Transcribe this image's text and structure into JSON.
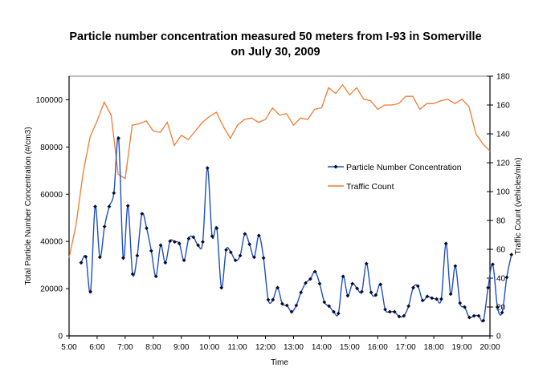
{
  "chart_data": {
    "type": "line",
    "title": [
      "Particle number concentration measured 50 meters from I-93 in Somerville",
      "on July 30, 2009"
    ],
    "xlabel": "Time",
    "ylabel": "Total Particle Number Concentration (#/cm3)",
    "y2label": "Traffic Count (vehicles/min)",
    "xlim": [
      5,
      20
    ],
    "ylim": [
      0,
      110000
    ],
    "y2lim": [
      0,
      180
    ],
    "x_ticks": [
      "5:00",
      "6:00",
      "7:00",
      "8:00",
      "9:00",
      "10:00",
      "11:00",
      "12:00",
      "13:00",
      "14:00",
      "15:00",
      "16:00",
      "17:00",
      "18:00",
      "19:00",
      "20:00"
    ],
    "y_ticks": [
      "0",
      "20000",
      "40000",
      "60000",
      "80000",
      "100000"
    ],
    "y2_ticks": [
      "0",
      "20",
      "40",
      "60",
      "80",
      "100",
      "120",
      "140",
      "160",
      "180"
    ],
    "legend_position": "right-middle",
    "colors": {
      "particle": "#1f4fbf",
      "marker": "#0a0a2a",
      "traffic": "#f07a30",
      "axis": "#000000",
      "frame": "#808080"
    },
    "series": [
      {
        "name": "Particle Number Concentration",
        "axis": "left",
        "marker": "diamond",
        "start_hour": 5.43,
        "step_hours": 0.1667,
        "values": [
          31000,
          33500,
          18700,
          54800,
          33300,
          46300,
          54800,
          60500,
          83700,
          33000,
          55100,
          26200,
          34000,
          51700,
          45600,
          36000,
          25200,
          38400,
          31000,
          40100,
          39800,
          39100,
          32000,
          41200,
          41800,
          38400,
          39800,
          71100,
          42200,
          45600,
          20400,
          36400,
          35400,
          32000,
          34000,
          43200,
          38800,
          33300,
          42500,
          33000,
          15300,
          15300,
          20400,
          13600,
          12900,
          10200,
          12900,
          18400,
          22400,
          24100,
          27200,
          22100,
          14300,
          12600,
          10200,
          9500,
          25200,
          17000,
          22100,
          20100,
          18700,
          30600,
          18400,
          17300,
          21800,
          11200,
          10200,
          10200,
          8200,
          8500,
          12600,
          20400,
          21100,
          15000,
          16700,
          16000,
          15600,
          15600,
          39100,
          17700,
          29600,
          13900,
          12200,
          7800,
          8500,
          8500,
          6500,
          20400,
          30300,
          12200,
          9900,
          24800,
          34400
        ]
      },
      {
        "name": "Traffic Count",
        "axis": "right",
        "marker": "none",
        "start_hour": 5.0,
        "step_hours": 0.25,
        "values": [
          54,
          77,
          113,
          138,
          149,
          162,
          153,
          112,
          109,
          146,
          147,
          149,
          142,
          141,
          148,
          132,
          139,
          136,
          142,
          148,
          152,
          155,
          145,
          137,
          146,
          150,
          151,
          148,
          150,
          158,
          153,
          154,
          146,
          151,
          150,
          157,
          158,
          172,
          168,
          174,
          167,
          172,
          164,
          163,
          157,
          160,
          160,
          161,
          166,
          166,
          157,
          161,
          161,
          163,
          164,
          161,
          164,
          159,
          140,
          133,
          128
        ]
      }
    ]
  }
}
